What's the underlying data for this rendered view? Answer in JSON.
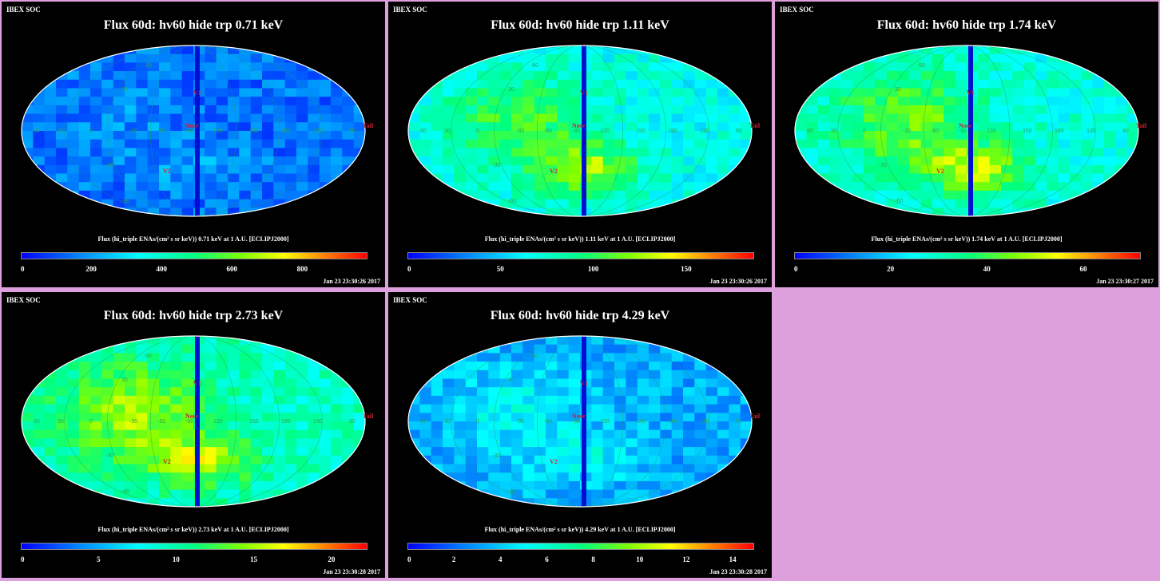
{
  "panels": [
    {
      "corner": "IBEX SOC",
      "title": "Flux 60d: hv60 hide trp 0.71 keV",
      "colorbar_label": "Flux (hi_triple ENAs/(cm² s sr keV)) 0.71 keV at 1 A.U. [ECLIPJ2000]",
      "ticks": [
        {
          "label": "0",
          "frac": 0.0
        },
        {
          "label": "200",
          "frac": 0.203
        },
        {
          "label": "400",
          "frac": 0.406
        },
        {
          "label": "600",
          "frac": 0.609
        },
        {
          "label": "800",
          "frac": 0.812
        }
      ],
      "timestamp": "Jan 23 23:30:26 2017",
      "base": 0.14,
      "blob": 0.04,
      "hot": 0.1,
      "seed": 11
    },
    {
      "corner": "IBEX SOC",
      "title": "Flux 60d: hv60 hide trp 1.11 keV",
      "colorbar_label": "Flux (hi_triple ENAs/(cm² s sr keV)) 1.11 keV at 1 A.U. [ECLIPJ2000]",
      "ticks": [
        {
          "label": "0",
          "frac": 0.0
        },
        {
          "label": "50",
          "frac": 0.268
        },
        {
          "label": "100",
          "frac": 0.536
        },
        {
          "label": "150",
          "frac": 0.804
        }
      ],
      "timestamp": "Jan 23 23:30:26 2017",
      "base": 0.36,
      "blob": 0.22,
      "hot": 0.5,
      "seed": 23
    },
    {
      "corner": "IBEX SOC",
      "title": "Flux 60d: hv60 hide trp 1.74 keV",
      "colorbar_label": "Flux (hi_triple ENAs/(cm² s sr keV)) 1.74 keV at 1 A.U. [ECLIPJ2000]",
      "ticks": [
        {
          "label": "0",
          "frac": 0.0
        },
        {
          "label": "20",
          "frac": 0.278
        },
        {
          "label": "40",
          "frac": 0.556
        },
        {
          "label": "60",
          "frac": 0.834
        }
      ],
      "timestamp": "Jan 23 23:30:27 2017",
      "base": 0.38,
      "blob": 0.24,
      "hot": 0.5,
      "seed": 37
    },
    {
      "corner": "IBEX SOC",
      "title": "Flux 60d: hv60 hide trp 2.73 keV",
      "colorbar_label": "Flux (hi_triple ENAs/(cm² s sr keV)) 2.73 keV at 1 A.U. [ECLIPJ2000]",
      "ticks": [
        {
          "label": "0",
          "frac": 0.0
        },
        {
          "label": "5",
          "frac": 0.224
        },
        {
          "label": "10",
          "frac": 0.448
        },
        {
          "label": "15",
          "frac": 0.672
        },
        {
          "label": "20",
          "frac": 0.896
        }
      ],
      "timestamp": "Jan 23 23:30:28 2017",
      "base": 0.42,
      "blob": 0.26,
      "hot": 0.42,
      "seed": 51
    },
    {
      "corner": "IBEX SOC",
      "title": "Flux 60d: hv60 hide trp 4.29 keV",
      "colorbar_label": "Flux (hi_triple ENAs/(cm² s sr keV)) 4.29 keV at 1 A.U. [ECLIPJ2000]",
      "ticks": [
        {
          "label": "0",
          "frac": 0.0
        },
        {
          "label": "2",
          "frac": 0.134
        },
        {
          "label": "4",
          "frac": 0.268
        },
        {
          "label": "6",
          "frac": 0.402
        },
        {
          "label": "8",
          "frac": 0.536
        },
        {
          "label": "10",
          "frac": 0.67
        },
        {
          "label": "12",
          "frac": 0.804
        },
        {
          "label": "14",
          "frac": 0.938
        }
      ],
      "timestamp": "Jan 23 23:30:28 2017",
      "base": 0.22,
      "blob": 0.12,
      "hot": 0.18,
      "seed": 67
    }
  ],
  "map_labels": {
    "grid": [
      "-30",
      "-60",
      "-90",
      "120",
      "150",
      "180",
      "150",
      "120",
      "90",
      "60",
      "30",
      "0",
      "-30",
      "-60",
      "90",
      "60"
    ],
    "markers": [
      "V1",
      "V2",
      "Nose",
      "Tail"
    ]
  }
}
